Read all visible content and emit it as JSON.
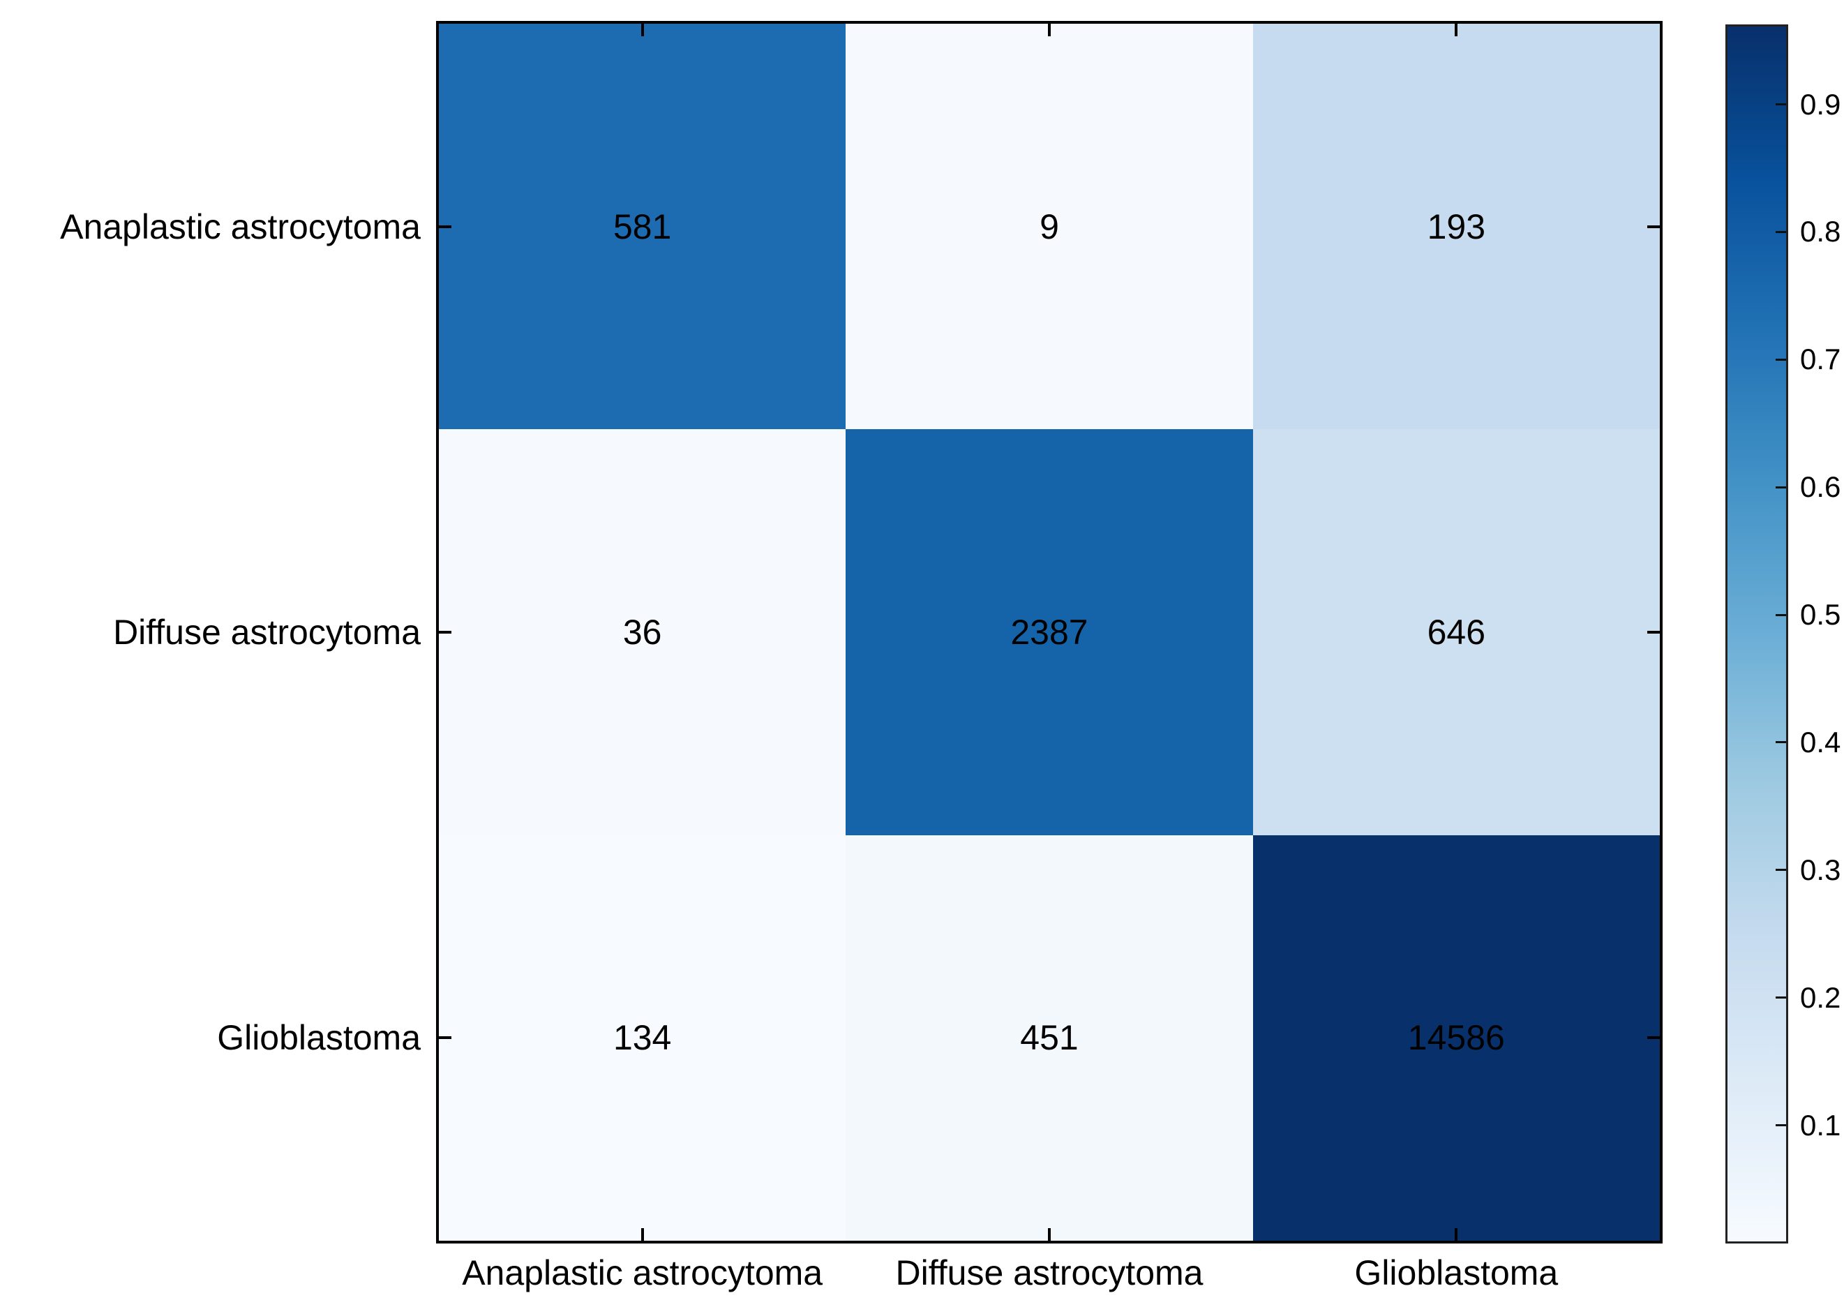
{
  "figure": {
    "background": "#ffffff",
    "axes_border_color": "#000000",
    "text_color": "#000000"
  },
  "chart_data": {
    "type": "heatmap",
    "subtype": "confusion-matrix",
    "title": "",
    "xlabel": "",
    "ylabel": "",
    "colormap": "Blues",
    "grid": false,
    "tick_direction": "in",
    "row_labels": [
      "Anaplastic astrocytoma",
      "Diffuse astrocytoma",
      "Glioblastoma"
    ],
    "col_labels": [
      "Anaplastic astrocytoma",
      "Diffuse astrocytoma",
      "Glioblastoma"
    ],
    "values": [
      [
        581,
        9,
        193
      ],
      [
        36,
        2387,
        646
      ],
      [
        134,
        451,
        14586
      ]
    ],
    "row_fractions": [
      [
        0.742,
        0.011,
        0.247
      ],
      [
        0.012,
        0.778,
        0.211
      ],
      [
        0.009,
        0.03,
        0.961
      ]
    ],
    "cell_colors": [
      [
        "#1d6cb2",
        "#f6fafe",
        "#c6dbef"
      ],
      [
        "#f6fafe",
        "#1563a9",
        "#cde0f1"
      ],
      [
        "#f7fbff",
        "#f3f8fd",
        "#08306b"
      ]
    ],
    "value_label_color": "#000000",
    "colorbar": {
      "position": "right",
      "vmin": 0.009,
      "vmax": 0.961,
      "ticks": [
        0.9,
        0.8,
        0.7,
        0.6,
        0.5,
        0.4,
        0.3,
        0.2,
        0.1
      ],
      "tick_labels": [
        "0.9",
        "0.8",
        "0.7",
        "0.6",
        "0.5",
        "0.4",
        "0.3",
        "0.2",
        "0.1"
      ],
      "gradient_stops": [
        {
          "pos": 0.0,
          "color": "#f7fbff"
        },
        {
          "pos": 0.125,
          "color": "#deebf7"
        },
        {
          "pos": 0.25,
          "color": "#c6dbef"
        },
        {
          "pos": 0.375,
          "color": "#9ecae1"
        },
        {
          "pos": 0.5,
          "color": "#6baed6"
        },
        {
          "pos": 0.625,
          "color": "#4292c6"
        },
        {
          "pos": 0.75,
          "color": "#2171b5"
        },
        {
          "pos": 0.875,
          "color": "#08519c"
        },
        {
          "pos": 1.0,
          "color": "#08306b"
        }
      ]
    }
  }
}
